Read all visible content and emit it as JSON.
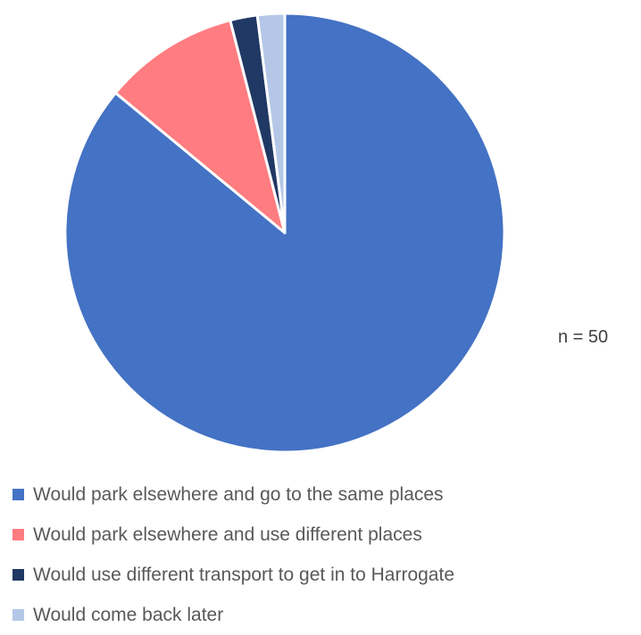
{
  "chart_data": {
    "type": "pie",
    "start_angle": "top",
    "direction": "clockwise",
    "slices": [
      {
        "label": "Would park elsewhere and go to the same places",
        "value": 43,
        "color": "#4472C4"
      },
      {
        "label": "Would park elsewhere and use different places",
        "value": 5,
        "color": "#FF7C80"
      },
      {
        "label": "Would use different transport to get in to Harrogate",
        "value": 1,
        "color": "#203864"
      },
      {
        "label": "Would come back later",
        "value": 1,
        "color": "#B4C7E7"
      }
    ],
    "annotation": "n = 50",
    "legend_position": "bottom"
  }
}
